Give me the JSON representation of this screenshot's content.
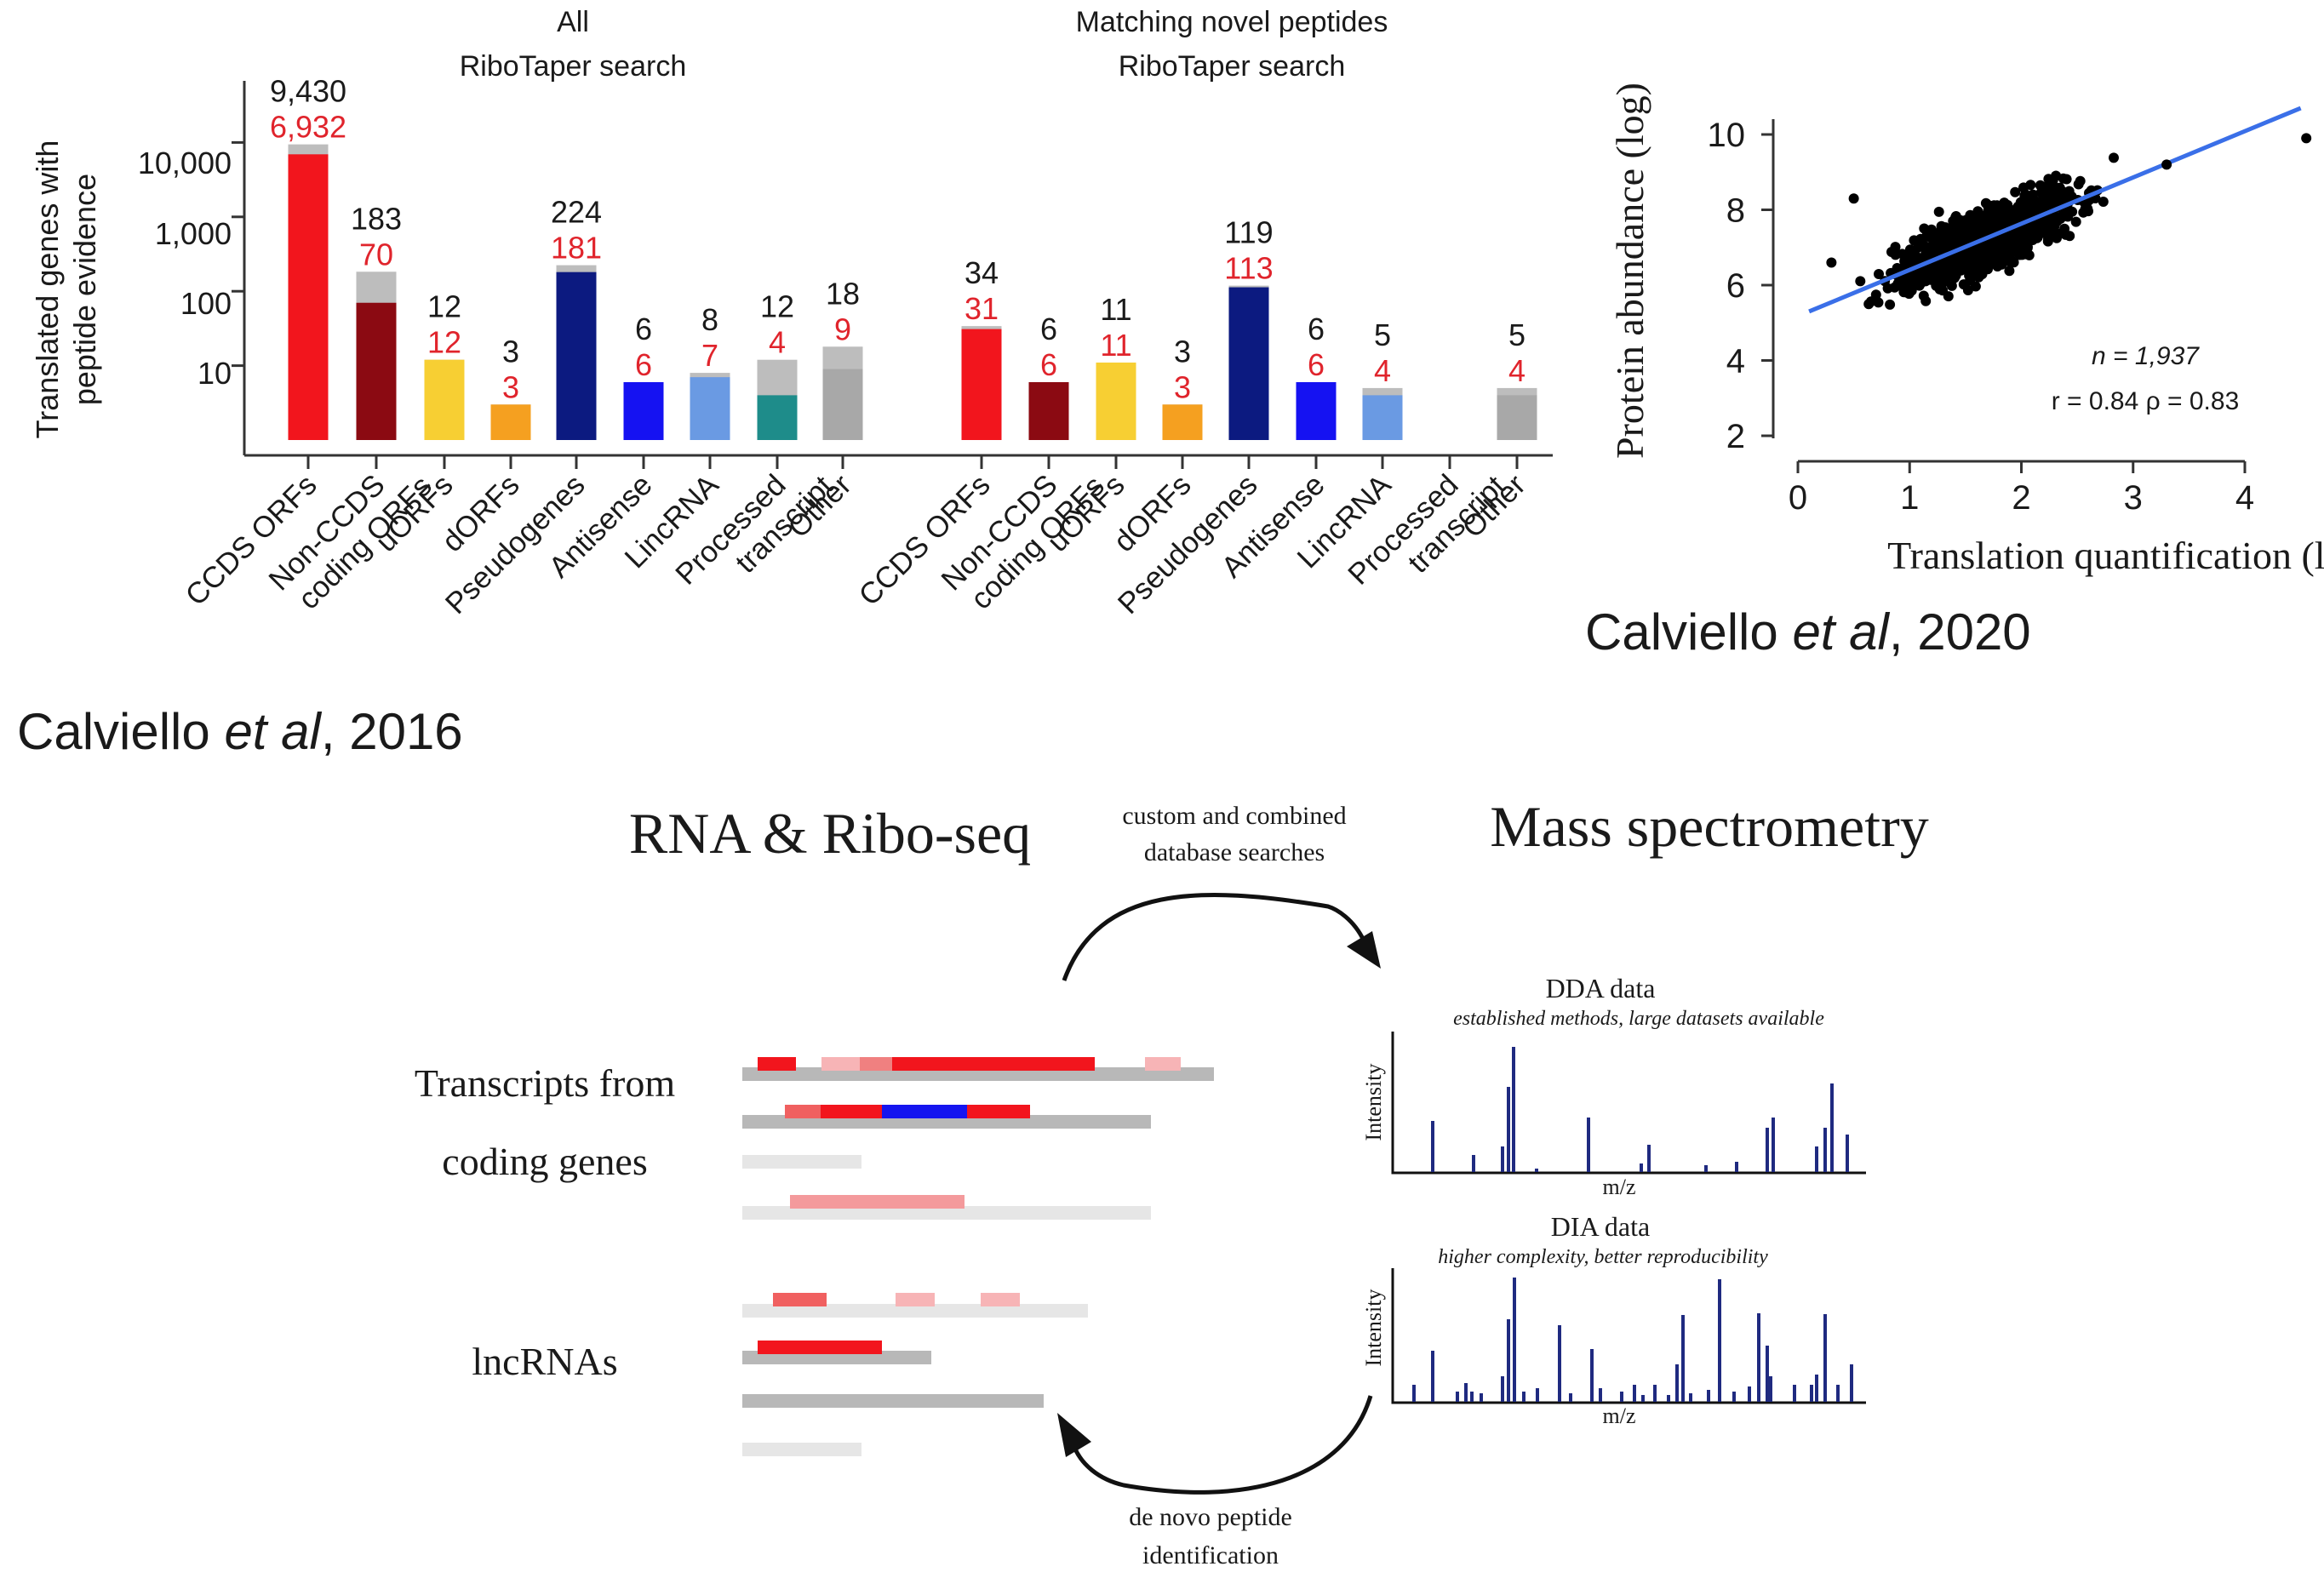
{
  "colors": {
    "gray_total": "#bdbdbd",
    "red_label": "#e0242c",
    "text": "#1a1a1a",
    "fit_line": "#3a6fe8",
    "spectrum": "#1f2a80"
  },
  "bar_panel": {
    "ylabel_line1": "Translated genes with",
    "ylabel_line2": "peptide evidence",
    "y_ticks": [
      "10,000",
      "1,000",
      "100",
      "10"
    ],
    "citation": {
      "author": "Calviello ",
      "etal": "et al",
      "year": ", 2016"
    }
  },
  "chart_data": [
    {
      "type": "bar",
      "title_line1": "All",
      "title_line2": "RiboTaper search",
      "ylabel": "Translated genes with peptide evidence",
      "yscale": "log",
      "ylim": [
        1,
        100000
      ],
      "categories": [
        "CCDS ORFs",
        "Non-CCDS coding ORFs",
        "uORFs",
        "dORFs",
        "Pseudogenes",
        "Antisense",
        "LincRNA",
        "Processed transcript",
        "Other"
      ],
      "series": [
        {
          "values": [
            9430,
            183,
            12,
            3,
            224,
            6,
            8,
            12,
            18
          ]
        },
        {
          "values": [
            6932,
            70,
            12,
            3,
            181,
            6,
            7,
            4,
            9
          ]
        }
      ],
      "total_labels": [
        "9,430",
        "183",
        "12",
        "3",
        "224",
        "6",
        "8",
        "12",
        "18"
      ],
      "match_labels": [
        "6,932",
        "70",
        "12",
        "3",
        "181",
        "6",
        "7",
        "4",
        "9"
      ],
      "bar_colors": [
        "#f2151d",
        "#8b0a12",
        "#f7cf33",
        "#f5a020",
        "#0c1a80",
        "#1512f2",
        "#6a9ae3",
        "#1e8c8a",
        "#a8a8a8"
      ]
    },
    {
      "type": "bar",
      "title_line1": "Matching novel peptides",
      "title_line2": "RiboTaper search",
      "ylabel": "Translated genes with peptide evidence",
      "yscale": "log",
      "ylim": [
        1,
        100000
      ],
      "categories": [
        "CCDS ORFs",
        "Non-CCDS coding ORFs",
        "uORFs",
        "dORFs",
        "Pseudogenes",
        "Antisense",
        "LincRNA",
        "Processed transcript",
        "Other"
      ],
      "series": [
        {
          "values": [
            34,
            6,
            11,
            3,
            119,
            6,
            5,
            null,
            5
          ]
        },
        {
          "values": [
            31,
            6,
            11,
            3,
            113,
            6,
            4,
            null,
            4
          ]
        }
      ],
      "total_labels": [
        "34",
        "6",
        "11",
        "3",
        "119",
        "6",
        "5",
        "",
        "5"
      ],
      "match_labels": [
        "31",
        "6",
        "11",
        "3",
        "113",
        "6",
        "4",
        "",
        "4"
      ],
      "bar_colors": [
        "#f2151d",
        "#8b0a12",
        "#f7cf33",
        "#f5a020",
        "#0c1a80",
        "#1512f2",
        "#6a9ae3",
        "#1e8c8a",
        "#a8a8a8"
      ]
    },
    {
      "type": "scatter",
      "xlabel": "Translation quantification (log)",
      "ylabel": "Protein abundance (log)",
      "xlim": [
        0,
        4.6
      ],
      "ylim": [
        1.5,
        11
      ],
      "x_ticks": [
        "0",
        "1",
        "2",
        "3",
        "4"
      ],
      "y_ticks": [
        "2",
        "4",
        "6",
        "8",
        "10"
      ],
      "fit_line": {
        "x": [
          0.1,
          4.5
        ],
        "y": [
          5.3,
          10.7
        ]
      },
      "outliers": {
        "x": [
          0.5,
          4.55,
          0.3,
          3.3
        ],
        "y": [
          8.3,
          9.9,
          6.6,
          9.2
        ]
      },
      "n": 1937,
      "r": 0.84,
      "rho": 0.83,
      "stats_line1": "n = 1,937",
      "stats_line2": "r = 0.84 ρ = 0.83",
      "citation": {
        "author": "Calviello ",
        "etal": "et al",
        "year": ", 2020"
      }
    }
  ],
  "workflow": {
    "left_title": "RNA & Ribo-seq",
    "right_title": "Mass spectrometry",
    "top_arrow_line1": "custom and combined",
    "top_arrow_line2": "database searches",
    "bottom_arrow_line1": "de novo peptide",
    "bottom_arrow_line2": "identification",
    "coding_label_line1": "Transcripts from",
    "coding_label_line2": "coding genes",
    "lnc_label": "lncRNAs",
    "dda_title": "DDA data",
    "dda_subtitle": "established methods, large datasets available",
    "dia_title": "DIA data",
    "dia_subtitle": "higher complexity, better reproducibility",
    "y_axis_label": "Intensity",
    "x_axis_label": "m/z"
  }
}
